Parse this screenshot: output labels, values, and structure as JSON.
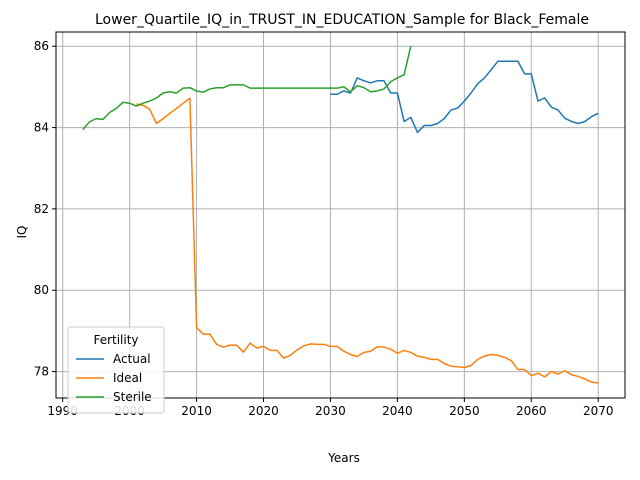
{
  "chart_data": {
    "type": "line",
    "title": "Lower_Quartile_IQ_in_TRUST_IN_EDUCATION_Sample for Black_Female",
    "xlabel": "Years",
    "ylabel": "IQ",
    "xlim": [
      1989,
      2074
    ],
    "ylim": [
      77.35,
      86.35
    ],
    "xticks": [
      1990,
      2000,
      2010,
      2020,
      2030,
      2040,
      2050,
      2060,
      2070
    ],
    "yticks": [
      78,
      80,
      82,
      84,
      86
    ],
    "grid": true,
    "legend": {
      "title": "Fertility",
      "placement": "lower-left"
    },
    "series": [
      {
        "name": "Actual",
        "color": "#1f77b4",
        "x": [
          2030,
          2031,
          2032,
          2033,
          2034,
          2035,
          2036,
          2037,
          2038,
          2039,
          2040,
          2041,
          2042,
          2043,
          2044,
          2045,
          2046,
          2047,
          2048,
          2049,
          2050,
          2051,
          2052,
          2053,
          2054,
          2055,
          2056,
          2057,
          2058,
          2059,
          2060,
          2061,
          2062,
          2063,
          2064,
          2065,
          2066,
          2067,
          2068,
          2069,
          2070
        ],
        "y": [
          84.82,
          84.82,
          84.9,
          84.85,
          85.22,
          85.15,
          85.1,
          85.15,
          85.15,
          84.85,
          84.85,
          84.15,
          84.25,
          83.88,
          84.05,
          84.05,
          84.1,
          84.22,
          84.43,
          84.48,
          84.65,
          84.85,
          85.08,
          85.22,
          85.42,
          85.63,
          85.63,
          85.63,
          85.63,
          85.32,
          85.32,
          84.65,
          84.73,
          84.5,
          84.43,
          84.23,
          84.15,
          84.1,
          84.15,
          84.27,
          84.35
        ]
      },
      {
        "name": "Ideal",
        "color": "#ff7f0e",
        "x": [
          2001,
          2002,
          2003,
          2004,
          2005,
          2006,
          2007,
          2008,
          2009,
          2010,
          2011,
          2012,
          2013,
          2014,
          2015,
          2016,
          2017,
          2018,
          2019,
          2020,
          2021,
          2022,
          2023,
          2024,
          2025,
          2026,
          2027,
          2028,
          2029,
          2030,
          2031,
          2032,
          2033,
          2034,
          2035,
          2036,
          2037,
          2038,
          2039,
          2040,
          2041,
          2042,
          2043,
          2044,
          2045,
          2046,
          2047,
          2048,
          2049,
          2050,
          2051,
          2052,
          2053,
          2054,
          2055,
          2056,
          2057,
          2058,
          2059,
          2060,
          2061,
          2062,
          2063,
          2064,
          2065,
          2066,
          2067,
          2068,
          2069,
          2070
        ],
        "y": [
          84.58,
          84.55,
          84.45,
          84.1,
          84.22,
          84.35,
          84.47,
          84.6,
          84.72,
          79.08,
          78.92,
          78.92,
          78.67,
          78.6,
          78.65,
          78.65,
          78.48,
          78.7,
          78.58,
          78.62,
          78.52,
          78.52,
          78.33,
          78.4,
          78.53,
          78.63,
          78.68,
          78.67,
          78.67,
          78.62,
          78.62,
          78.5,
          78.42,
          78.37,
          78.47,
          78.5,
          78.61,
          78.6,
          78.55,
          78.45,
          78.52,
          78.47,
          78.38,
          78.35,
          78.3,
          78.3,
          78.2,
          78.13,
          78.12,
          78.1,
          78.15,
          78.3,
          78.38,
          78.42,
          78.4,
          78.35,
          78.27,
          78.05,
          78.05,
          77.9,
          77.96,
          77.87,
          78.0,
          77.94,
          78.02,
          77.92,
          77.88,
          77.82,
          77.74,
          77.72
        ]
      },
      {
        "name": "Sterile",
        "color": "#2ca02c",
        "x": [
          1993,
          1994,
          1995,
          1996,
          1997,
          1998,
          1999,
          2000,
          2001,
          2002,
          2003,
          2004,
          2005,
          2006,
          2007,
          2008,
          2009,
          2010,
          2011,
          2012,
          2013,
          2014,
          2015,
          2016,
          2017,
          2018,
          2019,
          2020,
          2021,
          2022,
          2023,
          2024,
          2025,
          2026,
          2027,
          2028,
          2029,
          2030,
          2031,
          2032,
          2033,
          2034,
          2035,
          2036,
          2037,
          2038,
          2039,
          2040,
          2041,
          2042
        ],
        "y": [
          83.95,
          84.14,
          84.22,
          84.2,
          84.37,
          84.47,
          84.62,
          84.6,
          84.53,
          84.6,
          84.65,
          84.73,
          84.85,
          84.88,
          84.85,
          84.97,
          84.98,
          84.9,
          84.87,
          84.95,
          84.98,
          84.98,
          85.05,
          85.05,
          85.05,
          84.97,
          84.97,
          84.97,
          84.97,
          84.97,
          84.97,
          84.97,
          84.97,
          84.97,
          84.97,
          84.97,
          84.97,
          84.97,
          84.97,
          85.0,
          84.88,
          85.03,
          84.98,
          84.88,
          84.9,
          84.95,
          85.13,
          85.22,
          85.3,
          86.0
        ]
      }
    ]
  }
}
